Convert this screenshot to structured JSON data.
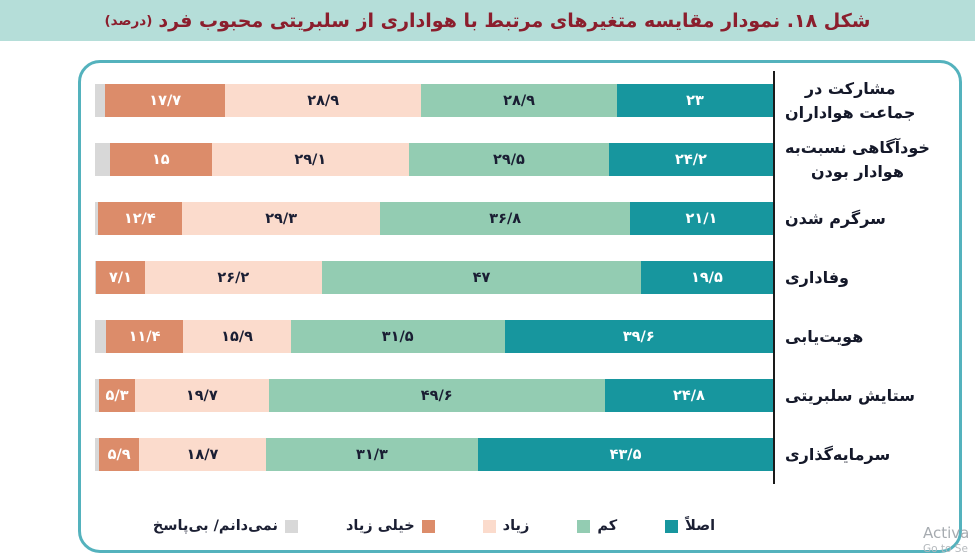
{
  "title": {
    "text": "شکل ۱۸. نمودار مقایسه متغیرهای مرتبط با هواداری از سلبریتی محبوب فرد",
    "unit": "(درصد)"
  },
  "watermark": {
    "line1": "Activa",
    "line2": "Go to Se"
  },
  "colors": {
    "title_strip_bg": "#b5ded9",
    "title_text": "#8b1e2d",
    "panel_border": "#54b2bd",
    "axis_line": "#1a1a1a",
    "dark_value_text": "#1a1e33"
  },
  "chart_data": {
    "type": "bar",
    "stacked": true,
    "orientation": "horizontal",
    "direction": "rtl",
    "unit": "percent",
    "xlim": [
      0,
      100
    ],
    "grid": false,
    "title": "شکل ۱۸. نمودار مقایسه متغیرهای مرتبط با هواداری از سلبریتی محبوب فرد (درصد)",
    "categories": [
      "مشارکت در جماعت هواداران",
      "خودآگاهی نسبت‌به هوادار بودن",
      "سرگرم شدن",
      "وفاداری",
      "هویت‌یابی",
      "ستایش سلبریتی",
      "سرمایه‌گذاری"
    ],
    "category_lines": [
      [
        "مشارکت در",
        "جماعت هواداران"
      ],
      [
        "خودآگاهی نسبت‌به",
        "هوادار بودن"
      ],
      [
        "سرگرم شدن"
      ],
      [
        "وفاداری"
      ],
      [
        "هویت‌یابی"
      ],
      [
        "ستایش سلبریتی"
      ],
      [
        "سرمایه‌گذاری"
      ]
    ],
    "series": [
      {
        "name": "اصلاً",
        "color": "#17969e",
        "text_color": "#ffffff",
        "values": [
          23,
          24.2,
          21.1,
          19.5,
          39.6,
          24.8,
          43.5
        ],
        "labels": [
          "۲۳",
          "۲۴/۲",
          "۲۱/۱",
          "۱۹/۵",
          "۳۹/۶",
          "۲۴/۸",
          "۴۳/۵"
        ]
      },
      {
        "name": "کم",
        "color": "#93ccb2",
        "text_color": "#1a1e33",
        "values": [
          28.9,
          29.5,
          36.8,
          47,
          31.5,
          49.6,
          31.3
        ],
        "labels": [
          "۲۸/۹",
          "۲۹/۵",
          "۳۶/۸",
          "۴۷",
          "۳۱/۵",
          "۴۹/۶",
          "۳۱/۳"
        ]
      },
      {
        "name": "زیاد",
        "color": "#fbdbcc",
        "text_color": "#1a1e33",
        "values": [
          28.9,
          29.1,
          29.3,
          26.2,
          15.9,
          19.7,
          18.7
        ],
        "labels": [
          "۲۸/۹",
          "۲۹/۱",
          "۲۹/۳",
          "۲۶/۲",
          "۱۵/۹",
          "۱۹/۷",
          "۱۸/۷"
        ]
      },
      {
        "name": "خیلی زیاد",
        "color": "#dc8c6a",
        "text_color": "#ffffff",
        "values": [
          17.7,
          15,
          12.4,
          7.1,
          11.4,
          5.3,
          5.9
        ],
        "labels": [
          "۱۷/۷",
          "۱۵",
          "۱۲/۴",
          "۷/۱",
          "۱۱/۴",
          "۵/۳",
          "۵/۹"
        ]
      },
      {
        "name": "نمی‌دانم/ بی‌پاسخ",
        "color": "#d8d8d8",
        "text_color": "#1a1e33",
        "values": [
          1.5,
          2.2,
          0.4,
          0.2,
          1.6,
          0.6,
          0.6
        ],
        "labels": [
          "",
          "",
          "",
          "",
          "",
          "",
          ""
        ]
      }
    ],
    "legend": {
      "position": "bottom",
      "items": [
        {
          "label": "نمی‌دانم/ بی‌پاسخ",
          "color": "#d8d8d8",
          "swatch_side": "right"
        },
        {
          "label": "خیلی زیاد",
          "color": "#dc8c6a",
          "swatch_side": "right"
        },
        {
          "label": "زیاد",
          "color": "#fbdbcc",
          "swatch_side": "left"
        },
        {
          "label": "کم",
          "color": "#93ccb2",
          "swatch_side": "left"
        },
        {
          "label": "اصلاً",
          "color": "#17969e",
          "swatch_side": "left"
        }
      ]
    }
  }
}
